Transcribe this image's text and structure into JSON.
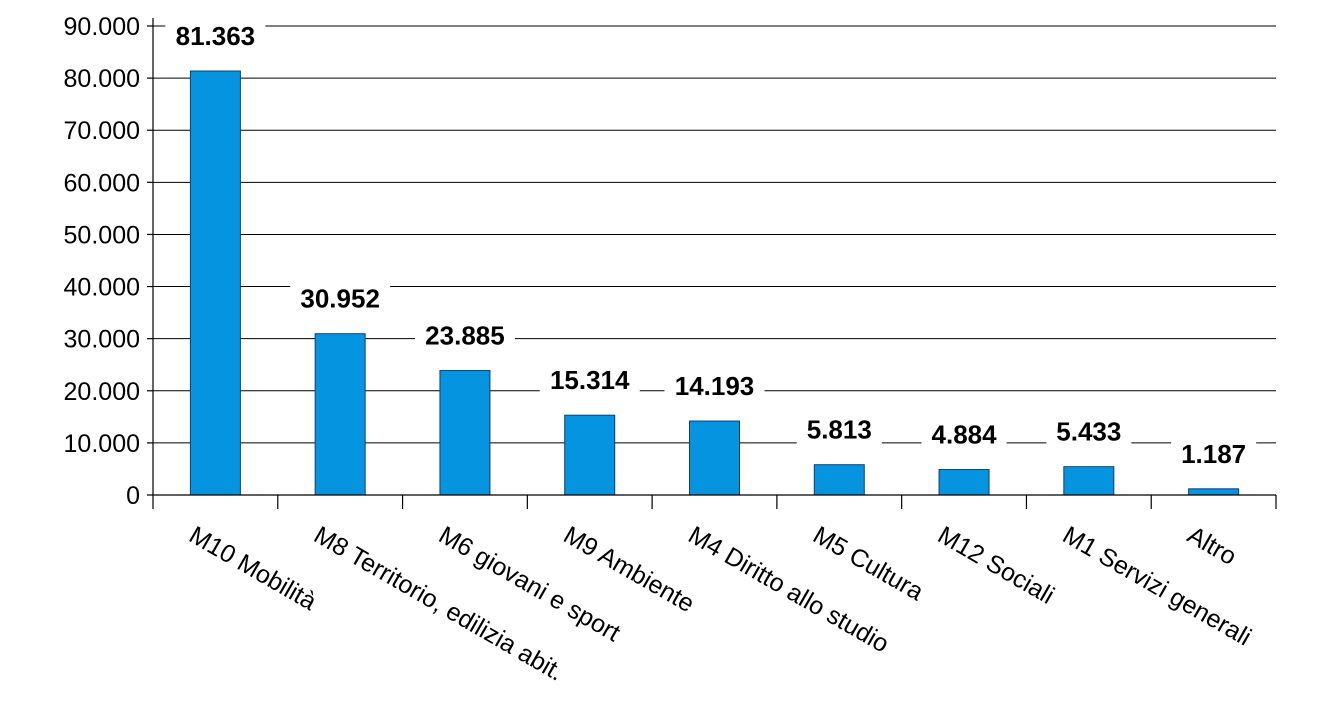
{
  "chart_data": {
    "type": "bar",
    "categories": [
      "M10 Mobilità",
      "M8 Territorio, edilizia abit.",
      "M6 giovani e sport",
      "M9 Ambiente",
      "M4 Diritto allo studio",
      "M5 Cultura",
      "M12 Sociali",
      "M1 Servizi generali",
      "Altro"
    ],
    "values": [
      81363,
      30952,
      23885,
      15314,
      14193,
      5813,
      4884,
      5433,
      1187
    ],
    "value_labels": [
      "81.363",
      "30.952",
      "23.885",
      "15.314",
      "14.193",
      "5.813",
      "4.884",
      "5.433",
      "1.187"
    ],
    "title": "",
    "xlabel": "",
    "ylabel": "",
    "ylim": [
      0,
      90000
    ],
    "yticks": [
      0,
      10000,
      20000,
      30000,
      40000,
      50000,
      60000,
      70000,
      80000,
      90000
    ],
    "ytick_labels": [
      "0",
      "10.000",
      "20.000",
      "30.000",
      "40.000",
      "50.000",
      "60.000",
      "70.000",
      "80.000",
      "90.000"
    ],
    "grid": true,
    "legend": "none",
    "bar_color": "#0595e0"
  }
}
